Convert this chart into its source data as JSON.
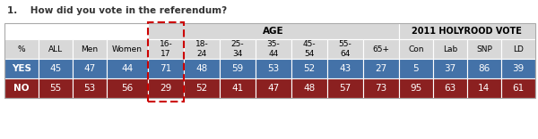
{
  "title": "1.    How did you vote in the referendum?",
  "header2": [
    "%",
    "ALL",
    "Men",
    "Women",
    "16-\n17",
    "18-\n24",
    "25-\n34",
    "35-\n44",
    "45-\n54",
    "55-\n64",
    "65+",
    "Con",
    "Lab",
    "SNP",
    "LD"
  ],
  "yes_row": [
    "YES",
    "45",
    "47",
    "44",
    "71",
    "48",
    "59",
    "53",
    "52",
    "43",
    "27",
    "5",
    "37",
    "86",
    "39"
  ],
  "no_row": [
    "NO",
    "55",
    "53",
    "56",
    "29",
    "52",
    "41",
    "47",
    "48",
    "57",
    "73",
    "95",
    "63",
    "14",
    "61"
  ],
  "yes_color": "#4472a8",
  "no_color": "#8b2020",
  "white_bg": "#ffffff",
  "light_gray": "#d8d8d8",
  "yes_text_color": "#ffffff",
  "no_text_color": "#ffffff",
  "highlight_color": "#cc0000",
  "col_widths": [
    1.0,
    1.0,
    1.0,
    1.2,
    1.05,
    1.05,
    1.05,
    1.05,
    1.05,
    1.05,
    1.05,
    1.0,
    1.0,
    1.0,
    1.0
  ]
}
